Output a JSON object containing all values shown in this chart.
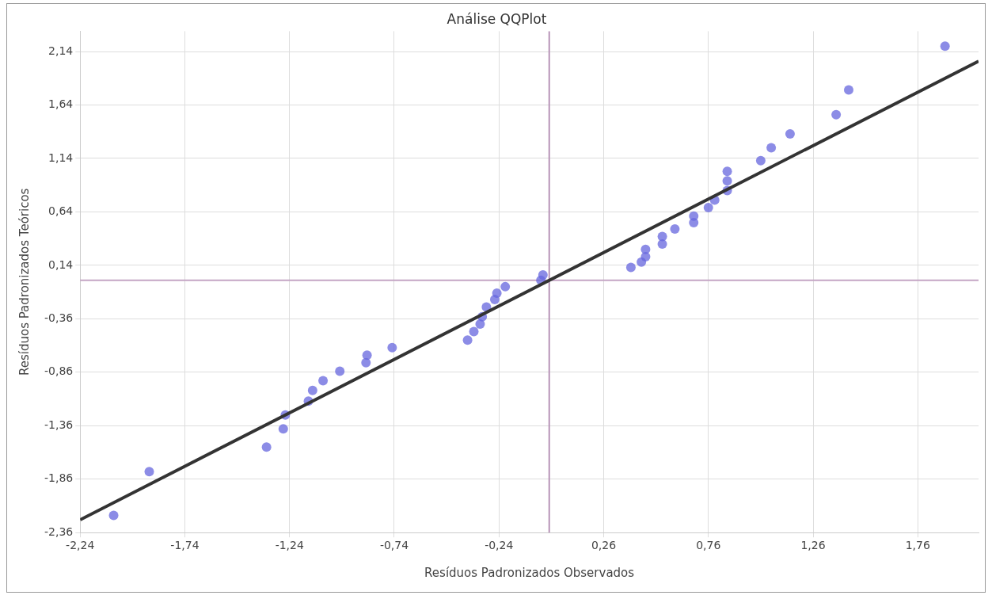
{
  "chart_data": {
    "type": "scatter",
    "title": "Análise QQPlot",
    "xlabel": "Resíduos Padronizados Observados",
    "ylabel": "Resíduos Padronizados Teóricos",
    "xlim": [
      -2.24,
      2.05
    ],
    "ylim": [
      -2.36,
      2.33
    ],
    "xticks": [
      {
        "value": -2.24,
        "label": "-2,24"
      },
      {
        "value": -1.74,
        "label": "-1,74"
      },
      {
        "value": -1.24,
        "label": "-1,24"
      },
      {
        "value": -0.74,
        "label": "-0,74"
      },
      {
        "value": -0.24,
        "label": "-0,24"
      },
      {
        "value": 0.26,
        "label": "0,26"
      },
      {
        "value": 0.76,
        "label": "0,76"
      },
      {
        "value": 1.26,
        "label": "1,26"
      },
      {
        "value": 1.76,
        "label": "1,76"
      }
    ],
    "yticks": [
      {
        "value": -2.36,
        "label": "-2,36"
      },
      {
        "value": -1.86,
        "label": "-1,86"
      },
      {
        "value": -1.36,
        "label": "-1,36"
      },
      {
        "value": -0.86,
        "label": "-0,86"
      },
      {
        "value": -0.36,
        "label": "-0,36"
      },
      {
        "value": 0.14,
        "label": "0,14"
      },
      {
        "value": 0.64,
        "label": "0,64"
      },
      {
        "value": 1.14,
        "label": "1,14"
      },
      {
        "value": 1.64,
        "label": "1,64"
      },
      {
        "value": 2.14,
        "label": "2,14"
      }
    ],
    "grid": true,
    "legend": false,
    "marker": "circle",
    "ref_lines": [
      {
        "axis": "x",
        "value": 0,
        "color": "#b894b8"
      },
      {
        "axis": "y",
        "value": 0,
        "color": "#c4a6c4"
      }
    ],
    "series": [
      {
        "color": "#6666dd",
        "x": [
          -2.08,
          -1.91,
          -1.35,
          -1.27,
          -1.26,
          -1.15,
          -1.13,
          -1.08,
          -1.0,
          -0.875,
          -0.87,
          -0.75,
          -0.39,
          -0.36,
          -0.33,
          -0.32,
          -0.3,
          -0.26,
          -0.25,
          -0.21,
          -0.04,
          -0.03,
          0.39,
          0.44,
          0.46,
          0.46,
          0.54,
          0.54,
          0.6,
          0.69,
          0.69,
          0.76,
          0.79,
          0.85,
          0.85,
          0.85,
          1.01,
          1.06,
          1.15,
          1.37,
          1.43,
          1.89
        ],
        "values": [
          -2.2,
          -1.79,
          -1.56,
          -1.39,
          -1.26,
          -1.13,
          -1.03,
          -0.94,
          -0.85,
          -0.77,
          -0.7,
          -0.63,
          -0.56,
          -0.48,
          -0.41,
          -0.34,
          -0.25,
          -0.18,
          -0.12,
          -0.06,
          0.0,
          0.05,
          0.12,
          0.17,
          0.22,
          0.29,
          0.34,
          0.41,
          0.48,
          0.54,
          0.6,
          0.68,
          0.75,
          0.84,
          0.93,
          1.02,
          1.12,
          1.24,
          1.37,
          1.55,
          1.78,
          2.19
        ]
      },
      {
        "type": "line",
        "color": "#333333",
        "x": [
          -2.24,
          2.05
        ],
        "values": [
          -2.24,
          2.05
        ],
        "marker": "none",
        "line_style": "solid"
      }
    ]
  }
}
